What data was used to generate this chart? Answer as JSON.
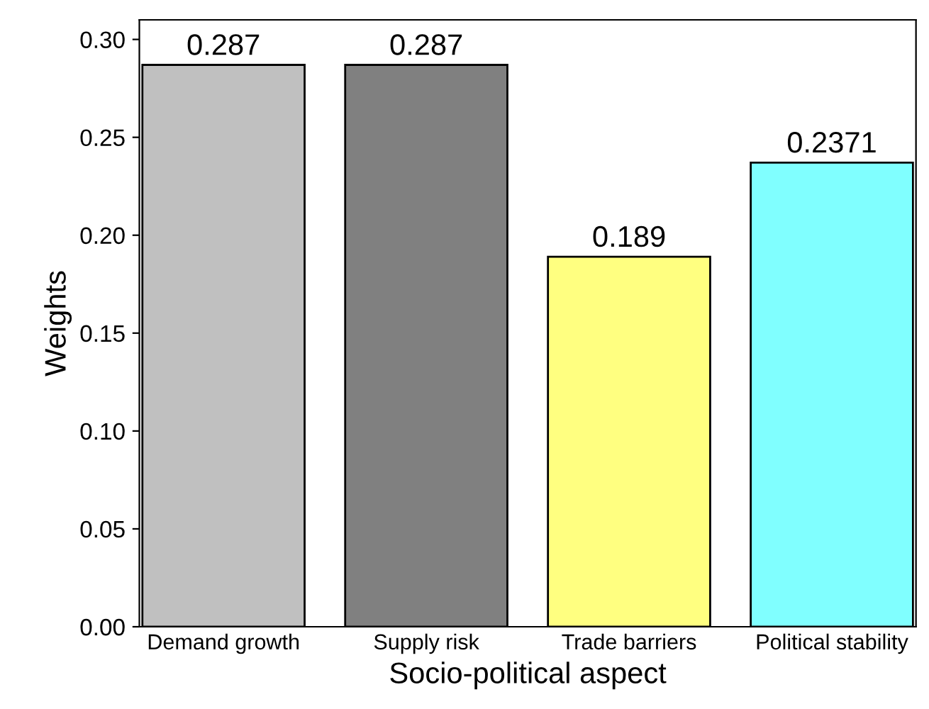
{
  "chart_data": {
    "type": "bar",
    "xlabel": "Socio-political aspect",
    "ylabel": "Weights",
    "categories": [
      "Demand growth",
      "Supply risk",
      "Trade barriers",
      "Political stability"
    ],
    "values": [
      0.287,
      0.287,
      0.189,
      0.2371
    ],
    "colors": [
      "#c0c0c0",
      "#808080",
      "#ffff80",
      "#80ffff"
    ],
    "data_labels": true,
    "ylim": [
      0,
      0.31
    ],
    "yticks": [
      {
        "value": 0,
        "label": "0.00"
      },
      {
        "value": 0.05,
        "label": "0.05"
      },
      {
        "value": 0.1,
        "label": "0.10"
      },
      {
        "value": 0.15,
        "label": "0.15"
      },
      {
        "value": 0.2,
        "label": "0.20"
      },
      {
        "value": 0.25,
        "label": "0.25"
      },
      {
        "value": 0.3,
        "label": "0.30"
      }
    ],
    "grid": false,
    "legend": false
  }
}
